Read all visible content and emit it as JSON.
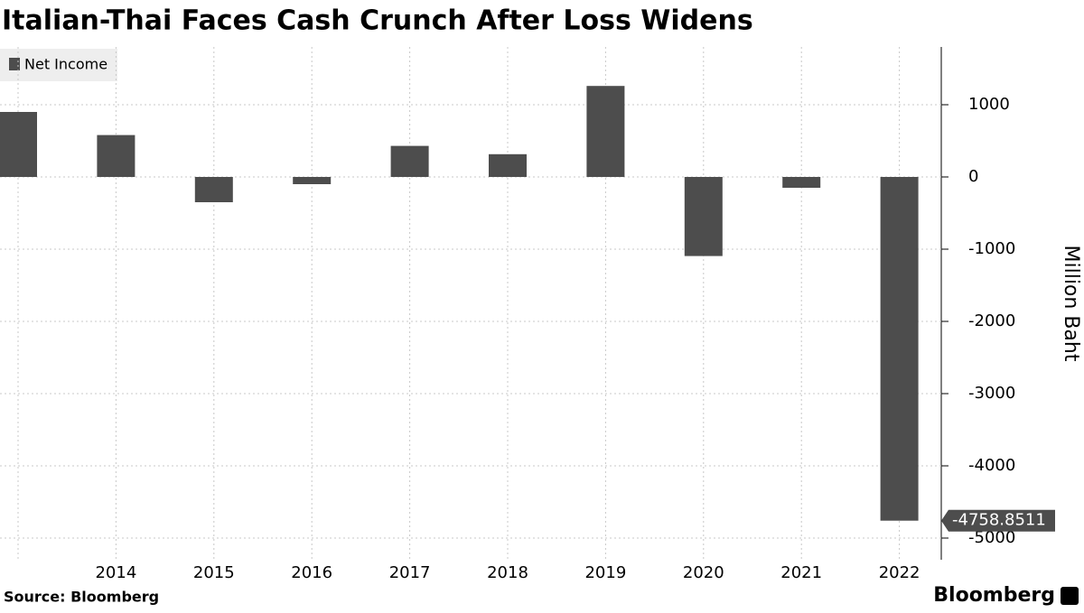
{
  "chart_data": {
    "type": "bar",
    "title": "Italian-Thai Faces Cash Crunch After Loss Widens",
    "categories": [
      null,
      "2014",
      "2015",
      "2016",
      "2017",
      "2018",
      "2019",
      "2020",
      "2021",
      "2022"
    ],
    "series": [
      {
        "name": "Net Income",
        "color": "#4d4d4d",
        "values": [
          900,
          580,
          -350,
          -100,
          430,
          315,
          1260,
          -1095,
          -150,
          -4758.8511
        ]
      }
    ],
    "ylim": [
      -5300,
      1800
    ],
    "yticks": [
      1000,
      0,
      -1000,
      -2000,
      -3000,
      -4000,
      -5000
    ],
    "ylabel": "Million Baht",
    "grid": true,
    "y_axis_side": "right",
    "source": "Source: Bloomberg",
    "brand": "Bloomberg"
  }
}
